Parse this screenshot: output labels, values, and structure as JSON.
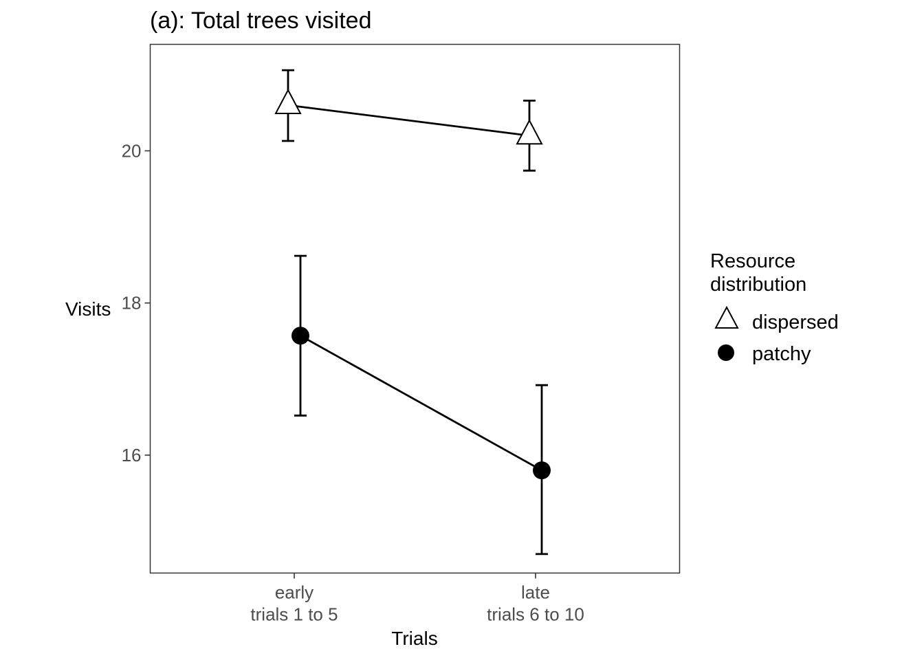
{
  "chart_data": {
    "type": "line",
    "title": "(a): Total trees visited",
    "xlabel": "Trials",
    "ylabel": "Visits",
    "categories": [
      [
        "early",
        "trials 1 to 5"
      ],
      [
        "late",
        "trials 6 to 10"
      ]
    ],
    "yticks": [
      "16",
      "18",
      "20"
    ],
    "ylim": [
      14.45,
      21.4
    ],
    "grid": false,
    "legend": {
      "title": [
        "Resource",
        "distribution"
      ],
      "placement": "right",
      "entries": [
        "dispersed",
        "patchy"
      ]
    },
    "series": [
      {
        "name": "dispersed",
        "marker": "open-triangle",
        "values": [
          20.6,
          20.2
        ],
        "err_low": [
          20.13,
          19.74
        ],
        "err_high": [
          21.06,
          20.66
        ]
      },
      {
        "name": "patchy",
        "marker": "filled-circle",
        "values": [
          17.57,
          15.8
        ],
        "err_low": [
          16.52,
          14.7
        ],
        "err_high": [
          18.62,
          16.92
        ]
      }
    ]
  }
}
